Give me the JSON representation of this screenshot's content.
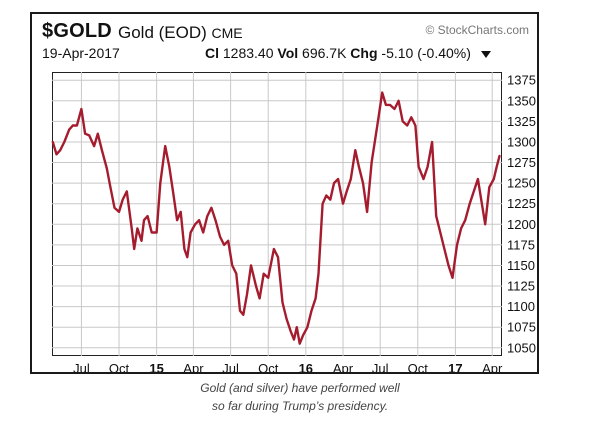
{
  "header": {
    "symbol": "$GOLD",
    "name": "Gold (EOD)",
    "exchange": "CME",
    "credit": "© StockCharts.com",
    "date": "19-Apr-2017",
    "close_label": "Cl",
    "close": "1283.40",
    "volume_label": "Vol",
    "volume": "696.7K",
    "change_label": "Chg",
    "change": "-5.10 (-0.40%)"
  },
  "caption": {
    "line1": "Gold (and silver) have performed well",
    "line2": "so far during Trump’s presidency."
  },
  "colors": {
    "line": "#a51c2e",
    "grid": "#c8c8c8",
    "text": "#111111"
  },
  "chart_data": {
    "type": "line",
    "title": "",
    "xlabel": "",
    "ylabel": "",
    "ylim": [
      1040,
      1385
    ],
    "yticks": [
      1050,
      1075,
      1100,
      1125,
      1150,
      1175,
      1200,
      1225,
      1250,
      1275,
      1300,
      1325,
      1350,
      1375
    ],
    "xticks": [
      {
        "label": "Jul",
        "x": "2014-07-01",
        "bold": false
      },
      {
        "label": "Oct",
        "x": "2014-10-01",
        "bold": false
      },
      {
        "label": "15",
        "x": "2015-01-01",
        "bold": true
      },
      {
        "label": "Apr",
        "x": "2015-04-01",
        "bold": false
      },
      {
        "label": "Jul",
        "x": "2015-07-01",
        "bold": false
      },
      {
        "label": "Oct",
        "x": "2015-10-01",
        "bold": false
      },
      {
        "label": "16",
        "x": "2016-01-01",
        "bold": true
      },
      {
        "label": "Apr",
        "x": "2016-04-01",
        "bold": false
      },
      {
        "label": "Jul",
        "x": "2016-07-01",
        "bold": false
      },
      {
        "label": "Oct",
        "x": "2016-10-01",
        "bold": false
      },
      {
        "label": "17",
        "x": "2017-01-01",
        "bold": true
      },
      {
        "label": "Apr",
        "x": "2017-04-01",
        "bold": false
      }
    ],
    "xlim": [
      "2014-04-20",
      "2017-04-25"
    ],
    "grid": true,
    "series": [
      {
        "x": [
          "2014-04-22",
          "2014-05-01",
          "2014-05-10",
          "2014-05-20",
          "2014-06-01",
          "2014-06-10",
          "2014-06-20",
          "2014-07-01",
          "2014-07-10",
          "2014-07-20",
          "2014-08-01",
          "2014-08-10",
          "2014-08-20",
          "2014-09-01",
          "2014-09-10",
          "2014-09-20",
          "2014-10-01",
          "2014-10-10",
          "2014-10-20",
          "2014-11-01",
          "2014-11-07",
          "2014-11-15",
          "2014-11-25",
          "2014-12-01",
          "2014-12-10",
          "2014-12-20",
          "2015-01-01",
          "2015-01-10",
          "2015-01-22",
          "2015-02-01",
          "2015-02-10",
          "2015-02-20",
          "2015-03-01",
          "2015-03-10",
          "2015-03-17",
          "2015-03-25",
          "2015-04-05",
          "2015-04-15",
          "2015-04-25",
          "2015-05-05",
          "2015-05-15",
          "2015-05-25",
          "2015-06-05",
          "2015-06-15",
          "2015-06-25",
          "2015-07-05",
          "2015-07-15",
          "2015-07-24",
          "2015-08-01",
          "2015-08-10",
          "2015-08-20",
          "2015-09-01",
          "2015-09-10",
          "2015-09-20",
          "2015-10-01",
          "2015-10-15",
          "2015-10-25",
          "2015-11-05",
          "2015-11-15",
          "2015-11-25",
          "2015-12-03",
          "2015-12-10",
          "2015-12-17",
          "2015-12-25",
          "2016-01-05",
          "2016-01-15",
          "2016-01-25",
          "2016-02-01",
          "2016-02-11",
          "2016-02-20",
          "2016-03-01",
          "2016-03-10",
          "2016-03-20",
          "2016-04-01",
          "2016-04-10",
          "2016-04-20",
          "2016-05-01",
          "2016-05-10",
          "2016-05-20",
          "2016-05-30",
          "2016-06-10",
          "2016-06-24",
          "2016-07-06",
          "2016-07-15",
          "2016-07-25",
          "2016-08-05",
          "2016-08-15",
          "2016-08-25",
          "2016-09-05",
          "2016-09-15",
          "2016-09-25",
          "2016-10-03",
          "2016-10-15",
          "2016-10-25",
          "2016-11-05",
          "2016-11-15",
          "2016-11-25",
          "2016-12-05",
          "2016-12-15",
          "2016-12-25",
          "2017-01-05",
          "2017-01-15",
          "2017-01-25",
          "2017-02-05",
          "2017-02-15",
          "2017-02-25",
          "2017-03-05",
          "2017-03-15",
          "2017-03-25",
          "2017-04-05",
          "2017-04-12",
          "2017-04-19"
        ],
        "values": [
          1300,
          1285,
          1290,
          1300,
          1315,
          1320,
          1320,
          1340,
          1310,
          1308,
          1295,
          1310,
          1290,
          1268,
          1245,
          1220,
          1215,
          1230,
          1240,
          1195,
          1170,
          1195,
          1180,
          1205,
          1210,
          1190,
          1190,
          1250,
          1295,
          1270,
          1240,
          1205,
          1215,
          1170,
          1160,
          1190,
          1200,
          1205,
          1190,
          1210,
          1220,
          1205,
          1185,
          1175,
          1180,
          1150,
          1140,
          1095,
          1090,
          1115,
          1150,
          1125,
          1110,
          1140,
          1135,
          1170,
          1160,
          1105,
          1085,
          1070,
          1060,
          1075,
          1055,
          1065,
          1075,
          1095,
          1110,
          1140,
          1225,
          1235,
          1230,
          1250,
          1255,
          1225,
          1240,
          1255,
          1290,
          1270,
          1250,
          1215,
          1275,
          1320,
          1360,
          1345,
          1345,
          1340,
          1350,
          1325,
          1320,
          1330,
          1320,
          1270,
          1255,
          1270,
          1300,
          1210,
          1190,
          1170,
          1150,
          1135,
          1175,
          1195,
          1205,
          1225,
          1240,
          1255,
          1230,
          1200,
          1245,
          1255,
          1270,
          1283
        ]
      }
    ]
  }
}
